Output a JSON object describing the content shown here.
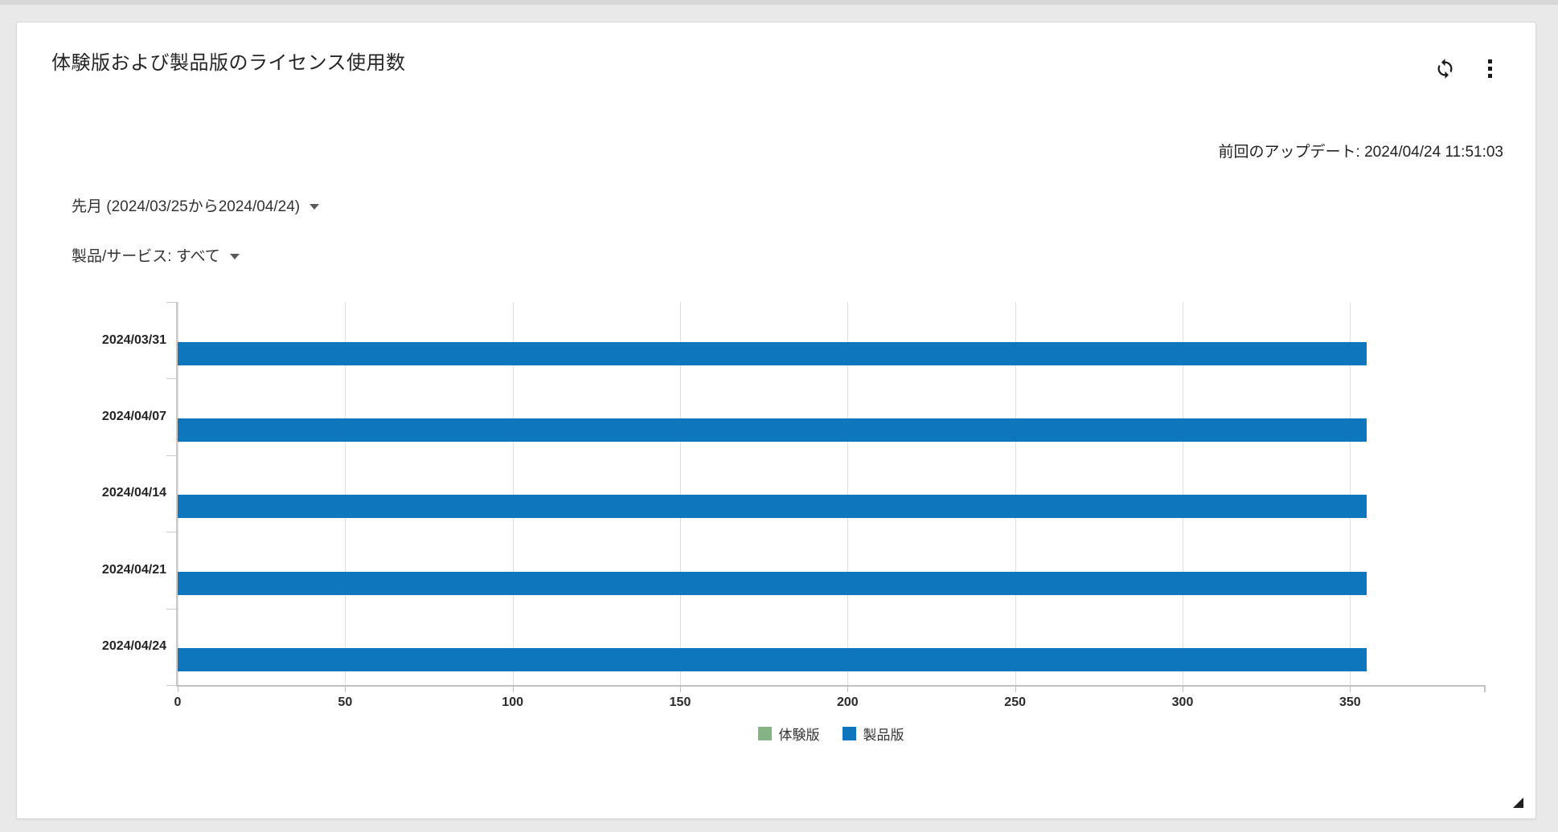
{
  "widget": {
    "title": "体験版および製品版のライセンス使用数",
    "last_update": "前回のアップデート: 2024/04/24 11:51:03",
    "filters": {
      "period": "先月 (2024/03/25から2024/04/24)",
      "product_service": "製品/サービス: すべて"
    },
    "icons": {
      "refresh": "refresh-sync-icon",
      "menu": "kebab-menu-icon",
      "filter_caret": "chevron-down-icon",
      "resize": "resize-corner-icon"
    },
    "colors": {
      "series_trial_green": "#85b385",
      "series_product_blue": "#0d76bd",
      "card_background": "#ffffff",
      "page_background": "#e9e9e9",
      "gridline": "#e0e0e0"
    }
  },
  "chart_data": {
    "type": "bar",
    "orientation": "horizontal",
    "title": "",
    "categories": [
      "2024/03/31",
      "2024/04/07",
      "2024/04/14",
      "2024/04/21",
      "2024/04/24"
    ],
    "series": [
      {
        "name": "体験版",
        "color": "#85b385",
        "values": [
          0,
          0,
          0,
          0,
          0
        ]
      },
      {
        "name": "製品版",
        "color": "#0d76bd",
        "values": [
          355,
          355,
          355,
          355,
          355
        ]
      }
    ],
    "xlabel": "",
    "ylabel": "",
    "xlim": [
      0,
      390
    ],
    "xticks": [
      0,
      50,
      100,
      150,
      200,
      250,
      300,
      350
    ],
    "grid": true,
    "legend_position": "bottom"
  }
}
